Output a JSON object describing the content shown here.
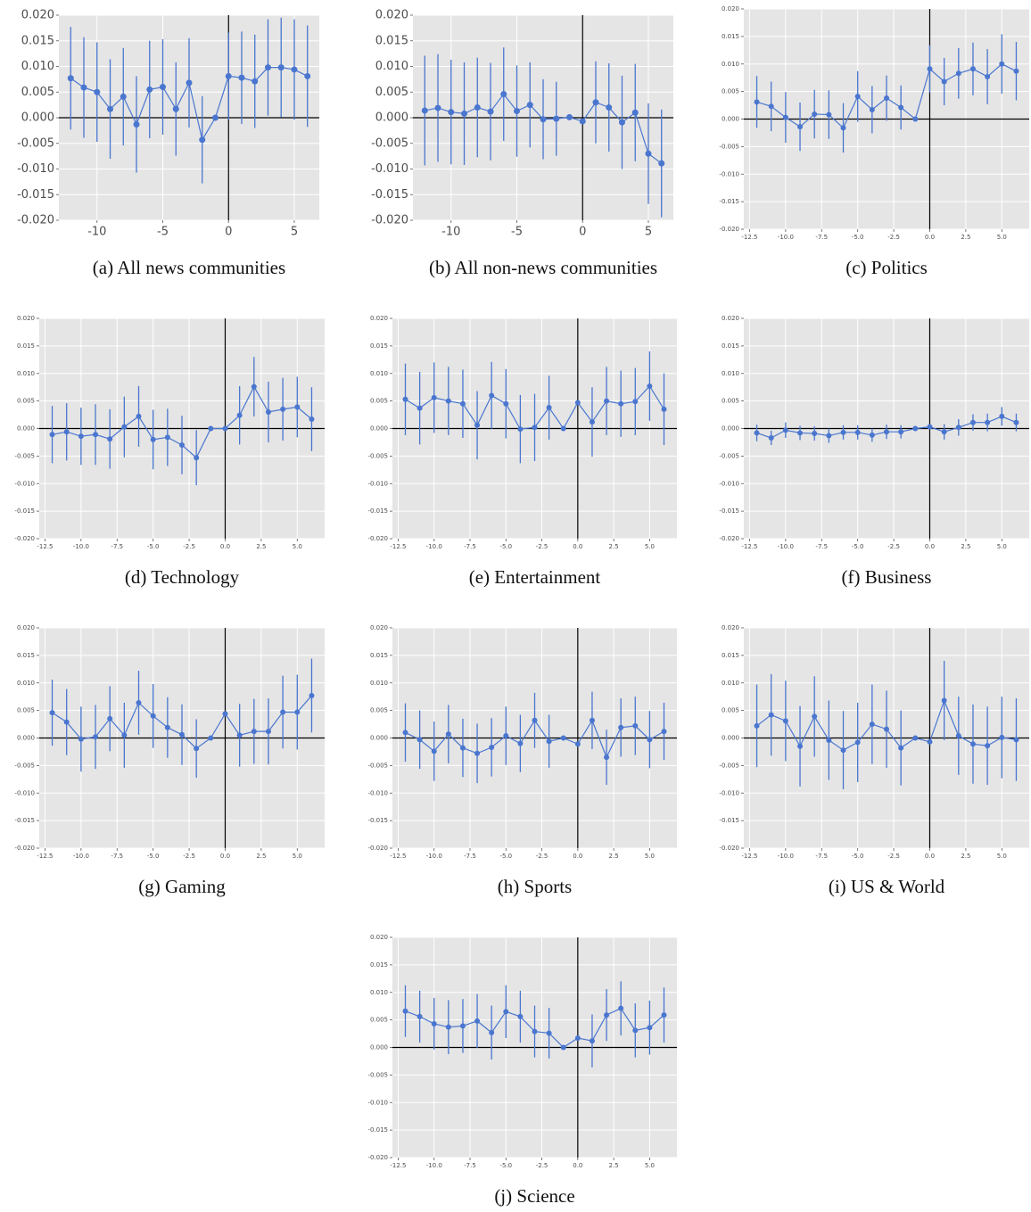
{
  "chart_data": [
    {
      "type": "errorbar",
      "title": "(a) All news communities",
      "x": [
        -12,
        -11,
        -10,
        -9,
        -8,
        -7,
        -6,
        -5,
        -4,
        -3,
        -2,
        -1,
        0,
        1,
        2,
        3,
        4,
        5,
        6
      ],
      "values": [
        0.0077,
        0.0059,
        0.005,
        0.0017,
        0.0041,
        -0.0013,
        0.0055,
        0.006,
        0.0017,
        0.0068,
        -0.0043,
        0.0,
        0.0081,
        0.0078,
        0.0071,
        0.0098,
        0.0098,
        0.0094,
        0.0081
      ],
      "errors": [
        0.01,
        0.0098,
        0.0097,
        0.0097,
        0.0095,
        0.0094,
        0.0095,
        0.0093,
        0.0091,
        0.0087,
        0.0085,
        0,
        0.0085,
        0.009,
        0.0091,
        0.0094,
        0.0097,
        0.0098,
        0.0099
      ],
      "color": "#4a76cf",
      "xlim": [
        -12.9,
        6.9
      ],
      "ylim": [
        -0.02,
        0.02
      ],
      "xticks": [
        -10,
        -5,
        0,
        5
      ],
      "yticks": [
        {
          "value": -0.02,
          "label": "-0.020"
        },
        -0.015,
        {
          "value": -0.01,
          "label": "-0.010"
        },
        -0.005,
        {
          "value": 0,
          "label": "0.000"
        },
        0.005,
        {
          "value": 0.01,
          "label": "0.010"
        },
        0.015,
        {
          "value": 0.02,
          "label": "0.020"
        }
      ],
      "grid": true,
      "hline": 0,
      "vline": 0
    },
    {
      "type": "errorbar",
      "title": "(b) All non-news communities",
      "x": [
        -12,
        -11,
        -10,
        -9,
        -8,
        -7,
        -6,
        -5,
        -4,
        -3,
        -2,
        -1,
        0,
        1,
        2,
        3,
        4,
        5,
        6
      ],
      "values": [
        0.0014,
        0.0019,
        0.0011,
        0.0008,
        0.002,
        0.0012,
        0.0046,
        0.0013,
        0.0025,
        -0.0003,
        -0.0002,
        0.0001,
        -0.0007,
        0.003,
        0.002,
        -0.0009,
        0.001,
        -0.007,
        -0.0089
      ],
      "errors": [
        0.0107,
        0.0105,
        0.0102,
        0.01,
        0.0097,
        0.0095,
        0.0091,
        0.0089,
        0.0083,
        0.0078,
        0.0072,
        0,
        0,
        0.008,
        0.0086,
        0.0091,
        0.0095,
        0.0098,
        0.0105
      ],
      "color": "#4a76cf",
      "xlim": [
        -12.9,
        6.9
      ],
      "ylim": [
        -0.02,
        0.02
      ],
      "xticks": [
        -10,
        -5,
        0,
        5
      ],
      "yticks": [
        {
          "value": -0.02,
          "label": "-0.020"
        },
        -0.015,
        {
          "value": -0.01,
          "label": "-0.010"
        },
        -0.005,
        {
          "value": 0,
          "label": "0.000"
        },
        0.005,
        {
          "value": 0.01,
          "label": "0.010"
        },
        0.015,
        {
          "value": 0.02,
          "label": "0.020"
        }
      ],
      "grid": true,
      "hline": 0,
      "vline": 0
    },
    {
      "type": "errorbar",
      "title": "(c) Politics",
      "x": [
        -12,
        -11,
        -10,
        -9,
        -8,
        -7,
        -6,
        -5,
        -4,
        -3,
        -2,
        -1,
        0,
        1,
        2,
        3,
        4,
        5,
        6
      ],
      "values": [
        0.0031,
        0.0023,
        0.0003,
        -0.0014,
        0.0009,
        0.0008,
        -0.0016,
        0.0041,
        0.0017,
        0.0038,
        0.0021,
        0.0,
        0.0091,
        0.0068,
        0.0083,
        0.0091,
        0.0077,
        0.01,
        0.0087
      ],
      "errors": [
        0.0047,
        0.0045,
        0.0046,
        0.0044,
        0.0044,
        0.0044,
        0.0045,
        0.0046,
        0.0043,
        0.0041,
        0.004,
        0,
        0.0043,
        0.0043,
        0.0046,
        0.0048,
        0.005,
        0.0054,
        0.0053
      ],
      "color": "#4a76cf",
      "xlim": [
        -12.9,
        6.9
      ],
      "ylim": [
        -0.02,
        0.02
      ],
      "xticks": [
        -12.5,
        {
          "value": -10,
          "label": "-10.0"
        },
        -7.5,
        {
          "value": -5,
          "label": "-5.0"
        },
        -2.5,
        {
          "value": 0,
          "label": "0.0"
        },
        2.5,
        {
          "value": 5,
          "label": "5.0"
        }
      ],
      "yticks": [
        {
          "value": -0.02,
          "label": "-0.020"
        },
        -0.015,
        {
          "value": -0.01,
          "label": "-0.010"
        },
        -0.005,
        {
          "value": 0,
          "label": "0.000"
        },
        0.005,
        {
          "value": 0.01,
          "label": "0.010"
        },
        0.015,
        {
          "value": 0.02,
          "label": "0.020"
        }
      ],
      "grid": true,
      "hline": 0,
      "vline": 0
    },
    {
      "type": "errorbar",
      "title": "(d) Technology",
      "x": [
        -12,
        -11,
        -10,
        -9,
        -8,
        -7,
        -6,
        -5,
        -4,
        -3,
        -2,
        -1,
        0,
        1,
        2,
        3,
        4,
        5,
        6
      ],
      "values": [
        -0.0011,
        -0.0006,
        -0.0014,
        -0.0011,
        -0.0019,
        0.0003,
        0.0022,
        -0.002,
        -0.0016,
        -0.003,
        -0.0053,
        0.0,
        0.0,
        0.0024,
        0.0076,
        0.003,
        0.0035,
        0.0039,
        0.0017
      ],
      "errors": [
        0.0052,
        0.0052,
        0.0052,
        0.0055,
        0.0054,
        0.0055,
        0.0055,
        0.0054,
        0.0052,
        0.0053,
        0.005,
        0,
        0,
        0.0053,
        0.0054,
        0.0055,
        0.0057,
        0.0055,
        0.0058
      ],
      "color": "#4a76cf",
      "xlim": [
        -12.9,
        6.9
      ],
      "ylim": [
        -0.02,
        0.02
      ],
      "xticks": [
        -12.5,
        {
          "value": -10,
          "label": "-10.0"
        },
        -7.5,
        {
          "value": -5,
          "label": "-5.0"
        },
        -2.5,
        {
          "value": 0,
          "label": "0.0"
        },
        2.5,
        {
          "value": 5,
          "label": "5.0"
        }
      ],
      "yticks": [
        {
          "value": -0.02,
          "label": "-0.020"
        },
        -0.015,
        {
          "value": -0.01,
          "label": "-0.010"
        },
        -0.005,
        {
          "value": 0,
          "label": "0.000"
        },
        0.005,
        {
          "value": 0.01,
          "label": "0.010"
        },
        0.015,
        {
          "value": 0.02,
          "label": "0.020"
        }
      ],
      "grid": true,
      "hline": 0,
      "vline": 0
    },
    {
      "type": "errorbar",
      "title": "(e) Entertainment",
      "x": [
        -12,
        -11,
        -10,
        -9,
        -8,
        -7,
        -6,
        -5,
        -4,
        -3,
        -2,
        -1,
        0,
        1,
        2,
        3,
        4,
        5,
        6
      ],
      "values": [
        0.0053,
        0.0037,
        0.0056,
        0.005,
        0.0045,
        0.0006,
        0.006,
        0.0045,
        -0.0001,
        0.0002,
        0.0038,
        0.0,
        0.0047,
        0.0012,
        0.005,
        0.0045,
        0.0049,
        0.0077,
        0.0035
      ],
      "errors": [
        0.0065,
        0.0066,
        0.0064,
        0.0062,
        0.0062,
        0.0062,
        0.0061,
        0.0063,
        0.0062,
        0.0061,
        0.0058,
        0,
        0,
        0.0063,
        0.0062,
        0.006,
        0.0061,
        0.0063,
        0.0065
      ],
      "color": "#4a76cf",
      "xlim": [
        -12.9,
        6.9
      ],
      "ylim": [
        -0.02,
        0.02
      ],
      "xticks": [
        -12.5,
        {
          "value": -10,
          "label": "-10.0"
        },
        -7.5,
        {
          "value": -5,
          "label": "-5.0"
        },
        -2.5,
        {
          "value": 0,
          "label": "0.0"
        },
        2.5,
        {
          "value": 5,
          "label": "5.0"
        }
      ],
      "yticks": [
        {
          "value": -0.02,
          "label": "-0.020"
        },
        -0.015,
        {
          "value": -0.01,
          "label": "-0.010"
        },
        -0.005,
        {
          "value": 0,
          "label": "0.000"
        },
        0.005,
        {
          "value": 0.01,
          "label": "0.010"
        },
        0.015,
        {
          "value": 0.02,
          "label": "0.020"
        }
      ],
      "grid": true,
      "hline": 0,
      "vline": 0
    },
    {
      "type": "errorbar",
      "title": "(f) Business",
      "x": [
        -12,
        -11,
        -10,
        -9,
        -8,
        -7,
        -6,
        -5,
        -4,
        -3,
        -2,
        -1,
        0,
        1,
        2,
        3,
        4,
        5,
        6
      ],
      "values": [
        -0.0008,
        -0.0017,
        -0.0003,
        -0.0008,
        -0.0009,
        -0.0013,
        -0.0007,
        -0.0007,
        -0.0012,
        -0.0006,
        -0.0006,
        0.0,
        0.0003,
        -0.0006,
        0.0002,
        0.0011,
        0.0011,
        0.0022,
        0.0011
      ],
      "errors": [
        0.0015,
        0.0013,
        0.0014,
        0.0013,
        0.0013,
        0.0013,
        0.0013,
        0.0013,
        0.0012,
        0.0013,
        0.0012,
        0,
        0,
        0.0014,
        0.0015,
        0.0015,
        0.0016,
        0.0017,
        0.0016
      ],
      "color": "#4a76cf",
      "xlim": [
        -12.9,
        6.9
      ],
      "ylim": [
        -0.02,
        0.02
      ],
      "xticks": [
        -12.5,
        {
          "value": -10,
          "label": "-10.0"
        },
        -7.5,
        {
          "value": -5,
          "label": "-5.0"
        },
        -2.5,
        {
          "value": 0,
          "label": "0.0"
        },
        2.5,
        {
          "value": 5,
          "label": "5.0"
        }
      ],
      "yticks": [
        {
          "value": -0.02,
          "label": "-0.020"
        },
        -0.015,
        {
          "value": -0.01,
          "label": "-0.010"
        },
        -0.005,
        {
          "value": 0,
          "label": "0.000"
        },
        0.005,
        {
          "value": 0.01,
          "label": "0.010"
        },
        0.015,
        {
          "value": 0.02,
          "label": "0.020"
        }
      ],
      "grid": true,
      "hline": 0,
      "vline": 0
    },
    {
      "type": "errorbar",
      "title": "(g) Gaming",
      "x": [
        -12,
        -11,
        -10,
        -9,
        -8,
        -7,
        -6,
        -5,
        -4,
        -3,
        -2,
        -1,
        0,
        1,
        2,
        3,
        4,
        5,
        6
      ],
      "values": [
        0.0046,
        0.0029,
        -0.0002,
        0.0002,
        0.0035,
        0.0005,
        0.0064,
        0.004,
        0.0019,
        0.0006,
        -0.0019,
        0.0,
        0.0044,
        0.0005,
        0.0012,
        0.0012,
        0.0047,
        0.0047,
        0.0077
      ],
      "errors": [
        0.006,
        0.006,
        0.0059,
        0.0058,
        0.0059,
        0.0059,
        0.0058,
        0.0058,
        0.0055,
        0.0055,
        0.0053,
        0,
        0,
        0.0057,
        0.0059,
        0.006,
        0.0066,
        0.0068,
        0.0067
      ],
      "color": "#4a76cf",
      "xlim": [
        -12.9,
        6.9
      ],
      "ylim": [
        -0.02,
        0.02
      ],
      "xticks": [
        -12.5,
        {
          "value": -10,
          "label": "-10.0"
        },
        -7.5,
        {
          "value": -5,
          "label": "-5.0"
        },
        -2.5,
        {
          "value": 0,
          "label": "0.0"
        },
        2.5,
        {
          "value": 5,
          "label": "5.0"
        }
      ],
      "yticks": [
        {
          "value": -0.02,
          "label": "-0.020"
        },
        -0.015,
        {
          "value": -0.01,
          "label": "-0.010"
        },
        -0.005,
        {
          "value": 0,
          "label": "0.000"
        },
        0.005,
        {
          "value": 0.01,
          "label": "0.010"
        },
        0.015,
        {
          "value": 0.02,
          "label": "0.020"
        }
      ],
      "grid": true,
      "hline": 0,
      "vline": 0
    },
    {
      "type": "errorbar",
      "title": "(h) Sports",
      "x": [
        -12,
        -11,
        -10,
        -9,
        -8,
        -7,
        -6,
        -5,
        -4,
        -3,
        -2,
        -1,
        0,
        1,
        2,
        3,
        4,
        5,
        6
      ],
      "values": [
        0.001,
        -0.0003,
        -0.0024,
        0.0007,
        -0.0018,
        -0.0028,
        -0.0017,
        0.0004,
        -0.001,
        0.0032,
        -0.0006,
        0.0,
        -0.0011,
        0.0032,
        -0.0035,
        0.0019,
        0.0022,
        -0.0003,
        0.0012
      ],
      "errors": [
        0.0053,
        0.0053,
        0.0054,
        0.0053,
        0.0053,
        0.0054,
        0.0053,
        0.0053,
        0.0052,
        0.005,
        0.0048,
        0,
        0,
        0.0052,
        0.005,
        0.0053,
        0.0053,
        0.0052,
        0.0052
      ],
      "color": "#4a76cf",
      "xlim": [
        -12.9,
        6.9
      ],
      "ylim": [
        -0.02,
        0.02
      ],
      "xticks": [
        -12.5,
        {
          "value": -10,
          "label": "-10.0"
        },
        -7.5,
        {
          "value": -5,
          "label": "-5.0"
        },
        -2.5,
        {
          "value": 0,
          "label": "0.0"
        },
        2.5,
        {
          "value": 5,
          "label": "5.0"
        }
      ],
      "yticks": [
        {
          "value": -0.02,
          "label": "-0.020"
        },
        -0.015,
        {
          "value": -0.01,
          "label": "-0.010"
        },
        -0.005,
        {
          "value": 0,
          "label": "0.000"
        },
        0.005,
        {
          "value": 0.01,
          "label": "0.010"
        },
        0.015,
        {
          "value": 0.02,
          "label": "0.020"
        }
      ],
      "grid": true,
      "hline": 0,
      "vline": 0
    },
    {
      "type": "errorbar",
      "title": "(i) US & World",
      "x": [
        -12,
        -11,
        -10,
        -9,
        -8,
        -7,
        -6,
        -5,
        -4,
        -3,
        -2,
        -1,
        0,
        1,
        2,
        3,
        4,
        5,
        6
      ],
      "values": [
        0.0022,
        0.0042,
        0.0031,
        -0.0015,
        0.0039,
        -0.0004,
        -0.0022,
        -0.0008,
        0.0025,
        0.0016,
        -0.0018,
        0.0,
        -0.0007,
        0.0068,
        0.0004,
        -0.0011,
        -0.0014,
        0.0001,
        -0.0003
      ],
      "errors": [
        0.0075,
        0.0074,
        0.0073,
        0.0073,
        0.0073,
        0.0072,
        0.0071,
        0.0072,
        0.0072,
        0.007,
        0.0068,
        0,
        0,
        0.0072,
        0.0071,
        0.0072,
        0.0071,
        0.0074,
        0.0075
      ],
      "color": "#4a76cf",
      "xlim": [
        -12.9,
        6.9
      ],
      "ylim": [
        -0.02,
        0.02
      ],
      "xticks": [
        -12.5,
        {
          "value": -10,
          "label": "-10.0"
        },
        -7.5,
        {
          "value": -5,
          "label": "-5.0"
        },
        -2.5,
        {
          "value": 0,
          "label": "0.0"
        },
        2.5,
        {
          "value": 5,
          "label": "5.0"
        }
      ],
      "yticks": [
        {
          "value": -0.02,
          "label": "-0.020"
        },
        -0.015,
        {
          "value": -0.01,
          "label": "-0.010"
        },
        -0.005,
        {
          "value": 0,
          "label": "0.000"
        },
        0.005,
        {
          "value": 0.01,
          "label": "0.010"
        },
        0.015,
        {
          "value": 0.02,
          "label": "0.020"
        }
      ],
      "grid": true,
      "hline": 0,
      "vline": 0
    },
    {
      "type": "errorbar",
      "title": "(j) Science",
      "x": [
        -12,
        -11,
        -10,
        -9,
        -8,
        -7,
        -6,
        -5,
        -4,
        -3,
        -2,
        -1,
        0,
        1,
        2,
        3,
        4,
        5,
        6
      ],
      "values": [
        0.0066,
        0.0056,
        0.0043,
        0.0037,
        0.0039,
        0.0048,
        0.0027,
        0.0065,
        0.0056,
        0.0029,
        0.0026,
        0.0,
        0.0017,
        0.0012,
        0.0059,
        0.0071,
        0.0031,
        0.0036,
        0.0059
      ],
      "errors": [
        0.0047,
        0.0047,
        0.0047,
        0.0049,
        0.0049,
        0.0049,
        0.0049,
        0.0048,
        0.0047,
        0.0047,
        0.0046,
        0,
        0,
        0.0048,
        0.0047,
        0.0049,
        0.0049,
        0.0049,
        0.005
      ],
      "color": "#4a76cf",
      "xlim": [
        -12.9,
        6.9
      ],
      "ylim": [
        -0.02,
        0.02
      ],
      "xticks": [
        -12.5,
        {
          "value": -10,
          "label": "-10.0"
        },
        -7.5,
        {
          "value": -5,
          "label": "-5.0"
        },
        -2.5,
        {
          "value": 0,
          "label": "0.0"
        },
        2.5,
        {
          "value": 5,
          "label": "5.0"
        }
      ],
      "yticks": [
        {
          "value": -0.02,
          "label": "-0.020"
        },
        -0.015,
        {
          "value": -0.01,
          "label": "-0.010"
        },
        -0.005,
        {
          "value": 0,
          "label": "0.000"
        },
        0.005,
        {
          "value": 0.01,
          "label": "0.010"
        },
        0.015,
        {
          "value": 0.02,
          "label": "0.020"
        }
      ],
      "grid": true,
      "hline": 0,
      "vline": 0
    }
  ]
}
